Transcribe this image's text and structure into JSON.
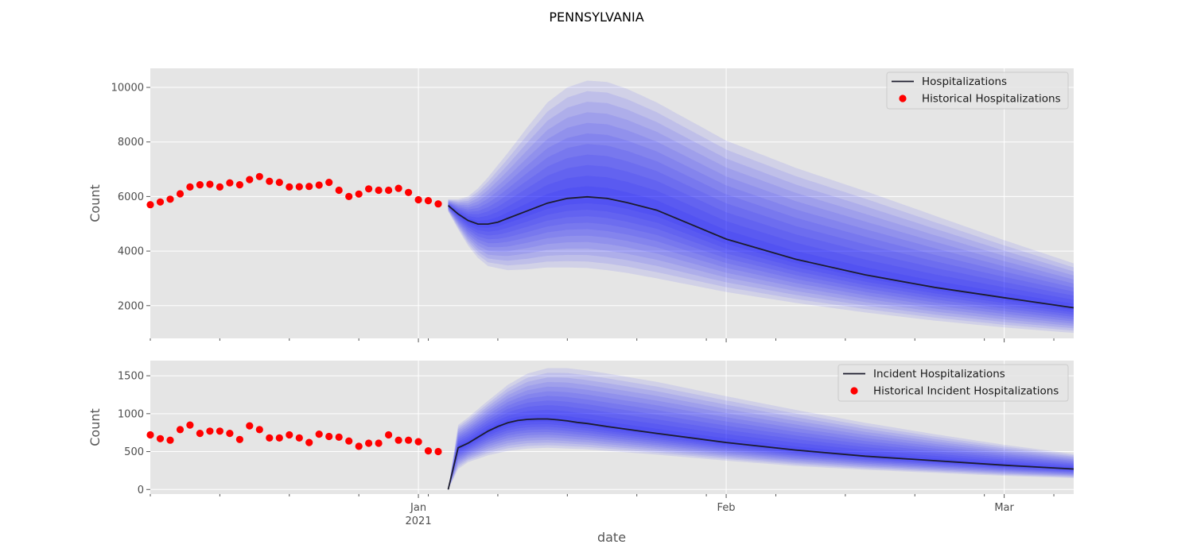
{
  "figure": {
    "title": "PENNSYLVANIA",
    "xlabel": "date"
  },
  "colors": {
    "historical": "#ff0000",
    "median": "#1c1c2e",
    "band": "#0000ff",
    "panel_bg": "#e5e5e5",
    "grid": "#ffffff"
  },
  "x_ticks": [
    {
      "date": "2021-01-01",
      "label": "Jan",
      "sublabel": "2021"
    },
    {
      "date": "2021-02-01",
      "label": "Feb",
      "sublabel": ""
    },
    {
      "date": "2021-03-01",
      "label": "Mar",
      "sublabel": ""
    }
  ],
  "chart_data": [
    {
      "type": "line",
      "ylabel": "Count",
      "xlim": [
        "2020-12-05",
        "2021-03-08"
      ],
      "ylim": [
        800,
        10700
      ],
      "yticks": [
        2000,
        4000,
        6000,
        8000,
        10000
      ],
      "grid": true,
      "legend_placement": "top-right",
      "series": [
        {
          "name": "Historical Hospitalizations",
          "kind": "scatter",
          "x": [
            "2020-12-05",
            "2020-12-06",
            "2020-12-07",
            "2020-12-08",
            "2020-12-09",
            "2020-12-10",
            "2020-12-11",
            "2020-12-12",
            "2020-12-13",
            "2020-12-14",
            "2020-12-15",
            "2020-12-16",
            "2020-12-17",
            "2020-12-18",
            "2020-12-19",
            "2020-12-20",
            "2020-12-21",
            "2020-12-22",
            "2020-12-23",
            "2020-12-24",
            "2020-12-25",
            "2020-12-26",
            "2020-12-27",
            "2020-12-28",
            "2020-12-29",
            "2020-12-30",
            "2020-12-31",
            "2021-01-01",
            "2021-01-02",
            "2021-01-03"
          ],
          "y": [
            5700,
            5800,
            5900,
            6100,
            6350,
            6430,
            6450,
            6350,
            6500,
            6430,
            6620,
            6730,
            6560,
            6520,
            6350,
            6360,
            6370,
            6420,
            6520,
            6230,
            6000,
            6090,
            6280,
            6230,
            6230,
            6300,
            6150,
            5880,
            5850,
            5730
          ]
        },
        {
          "name": "Hospitalizations",
          "kind": "line",
          "x": [
            "2021-01-04",
            "2021-01-05",
            "2021-01-06",
            "2021-01-07",
            "2021-01-08",
            "2021-01-09",
            "2021-01-10",
            "2021-01-12",
            "2021-01-14",
            "2021-01-16",
            "2021-01-18",
            "2021-01-20",
            "2021-01-22",
            "2021-01-25",
            "2021-02-01",
            "2021-02-08",
            "2021-02-15",
            "2021-02-22",
            "2021-03-01",
            "2021-03-08"
          ],
          "y": [
            5670,
            5360,
            5120,
            4990,
            4990,
            5060,
            5200,
            5480,
            5760,
            5930,
            5990,
            5930,
            5780,
            5500,
            4440,
            3700,
            3130,
            2670,
            2290,
            1920
          ]
        },
        {
          "name": "",
          "kind": "band",
          "x": [
            "2021-01-04",
            "2021-01-05",
            "2021-01-06",
            "2021-01-07",
            "2021-01-08",
            "2021-01-10",
            "2021-01-12",
            "2021-01-14",
            "2021-01-16",
            "2021-01-18",
            "2021-01-20",
            "2021-01-22",
            "2021-01-25",
            "2021-02-01",
            "2021-02-08",
            "2021-02-15",
            "2021-02-22",
            "2021-03-01",
            "2021-03-08"
          ],
          "lower": [
            5450,
            4800,
            4200,
            3750,
            3450,
            3300,
            3330,
            3400,
            3400,
            3380,
            3300,
            3200,
            3000,
            2500,
            2100,
            1750,
            1450,
            1200,
            1000
          ],
          "upper": [
            5900,
            5900,
            6000,
            6300,
            6700,
            7600,
            8550,
            9450,
            10000,
            10250,
            10200,
            9950,
            9450,
            8050,
            7050,
            6200,
            5300,
            4400,
            3550
          ]
        }
      ]
    },
    {
      "type": "line",
      "ylabel": "Count",
      "xlim": [
        "2020-12-05",
        "2021-03-08"
      ],
      "ylim": [
        -60,
        1700
      ],
      "yticks": [
        0,
        500,
        1000,
        1500
      ],
      "grid": true,
      "legend_placement": "top-right",
      "series": [
        {
          "name": "Historical Incident Hospitalizations",
          "kind": "scatter",
          "x": [
            "2020-12-05",
            "2020-12-06",
            "2020-12-07",
            "2020-12-08",
            "2020-12-09",
            "2020-12-10",
            "2020-12-11",
            "2020-12-12",
            "2020-12-13",
            "2020-12-14",
            "2020-12-15",
            "2020-12-16",
            "2020-12-17",
            "2020-12-18",
            "2020-12-19",
            "2020-12-20",
            "2020-12-21",
            "2020-12-22",
            "2020-12-23",
            "2020-12-24",
            "2020-12-25",
            "2020-12-26",
            "2020-12-27",
            "2020-12-28",
            "2020-12-29",
            "2020-12-30",
            "2020-12-31",
            "2021-01-01",
            "2021-01-02",
            "2021-01-03"
          ],
          "y": [
            720,
            670,
            650,
            790,
            850,
            740,
            770,
            770,
            740,
            660,
            840,
            790,
            680,
            680,
            720,
            680,
            620,
            730,
            700,
            690,
            640,
            570,
            610,
            610,
            720,
            650,
            650,
            630,
            510,
            500
          ]
        },
        {
          "name": "Incident Hospitalizations",
          "kind": "line",
          "x": [
            "2021-01-04",
            "2021-01-05",
            "2021-01-06",
            "2021-01-07",
            "2021-01-08",
            "2021-01-09",
            "2021-01-10",
            "2021-01-11",
            "2021-01-12",
            "2021-01-13",
            "2021-01-14",
            "2021-01-15",
            "2021-01-16",
            "2021-01-17",
            "2021-01-18",
            "2021-01-20",
            "2021-01-25",
            "2021-02-01",
            "2021-02-08",
            "2021-02-15",
            "2021-02-22",
            "2021-03-01",
            "2021-03-08"
          ],
          "y": [
            0,
            550,
            610,
            690,
            770,
            830,
            880,
            910,
            925,
            930,
            930,
            920,
            905,
            885,
            870,
            830,
            740,
            620,
            520,
            440,
            380,
            320,
            270
          ]
        },
        {
          "name": "",
          "kind": "band",
          "x": [
            "2021-01-04",
            "2021-01-05",
            "2021-01-06",
            "2021-01-08",
            "2021-01-10",
            "2021-01-12",
            "2021-01-14",
            "2021-01-16",
            "2021-01-18",
            "2021-01-20",
            "2021-01-25",
            "2021-02-01",
            "2021-02-08",
            "2021-02-15",
            "2021-02-22",
            "2021-03-01",
            "2021-03-08"
          ],
          "lower": [
            0,
            270,
            360,
            450,
            510,
            540,
            550,
            540,
            530,
            510,
            460,
            380,
            310,
            260,
            220,
            180,
            150
          ],
          "upper": [
            0,
            850,
            950,
            1170,
            1380,
            1530,
            1600,
            1600,
            1570,
            1530,
            1420,
            1230,
            1050,
            880,
            730,
            590,
            470
          ]
        }
      ]
    }
  ]
}
